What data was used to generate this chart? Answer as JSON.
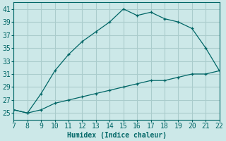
{
  "xlabel": "Humidex (Indice chaleur)",
  "background_color": "#cce8e8",
  "grid_color": "#aacccc",
  "line_color": "#006666",
  "xlim": [
    7,
    22
  ],
  "ylim": [
    24,
    42
  ],
  "xticks": [
    7,
    8,
    9,
    10,
    11,
    12,
    13,
    14,
    15,
    16,
    17,
    18,
    19,
    20,
    21,
    22
  ],
  "yticks": [
    25,
    27,
    29,
    31,
    33,
    35,
    37,
    39,
    41
  ],
  "line1_x": [
    7,
    8,
    9,
    10,
    11,
    12,
    13,
    14,
    15,
    16,
    17,
    18,
    19,
    20,
    21,
    22
  ],
  "line1_y": [
    25.5,
    25.0,
    28.0,
    31.5,
    34.0,
    36.0,
    37.5,
    39.0,
    41.0,
    40.0,
    40.5,
    39.5,
    39.0,
    38.0,
    35.0,
    31.5
  ],
  "line2_x": [
    7,
    8,
    9,
    10,
    11,
    12,
    13,
    14,
    15,
    16,
    17,
    18,
    19,
    20,
    21,
    22
  ],
  "line2_y": [
    25.5,
    25.0,
    25.5,
    26.5,
    27.0,
    27.5,
    28.0,
    28.5,
    29.0,
    29.5,
    30.0,
    30.0,
    30.5,
    31.0,
    31.0,
    31.5
  ],
  "tick_fontsize": 7,
  "xlabel_fontsize": 7
}
